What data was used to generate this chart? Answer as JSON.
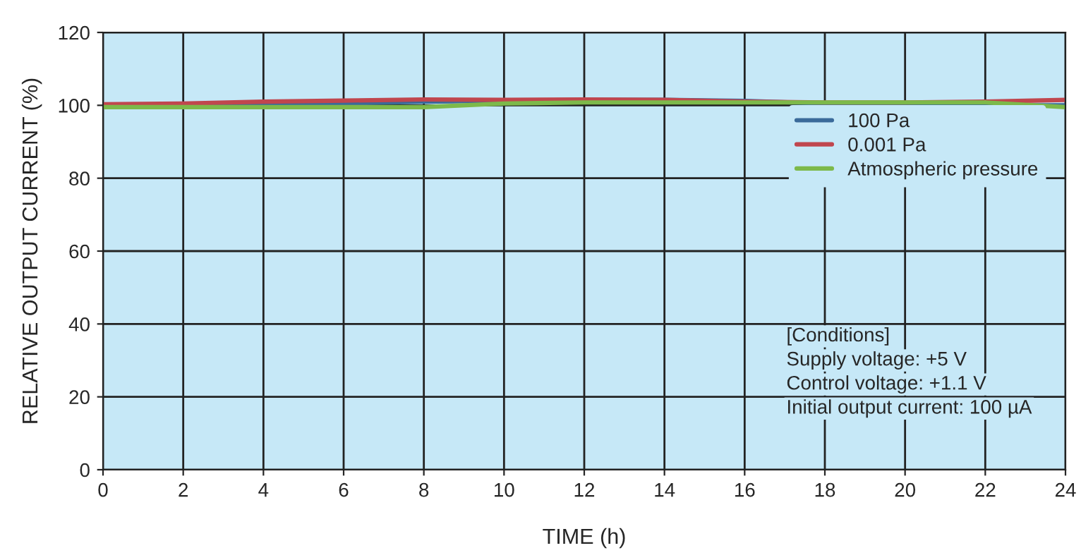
{
  "chart_data": {
    "type": "line",
    "xlabel": "TIME (h)",
    "ylabel": "RELATIVE OUTPUT CURRENT (%)",
    "x": [
      0,
      2,
      4,
      6,
      8,
      10,
      12,
      14,
      16,
      18,
      20,
      22,
      24
    ],
    "series": [
      {
        "name": "100 Pa",
        "color": "#3a6a9a",
        "values": [
          100,
          100,
          100.3,
          100.5,
          101,
          101.3,
          101.5,
          101.5,
          101.2,
          100.5,
          100,
          100,
          100
        ]
      },
      {
        "name": "0.001 Pa",
        "color": "#c0464e",
        "values": [
          100.3,
          100.5,
          101,
          101.3,
          101.6,
          101.5,
          101.6,
          101.5,
          101,
          100.8,
          100.8,
          101,
          101.5
        ]
      },
      {
        "name": "Atmospheric pressure",
        "color": "#7db94a",
        "values": [
          99.5,
          99.5,
          99.5,
          99.5,
          99.5,
          100.5,
          100.8,
          100.8,
          100.8,
          100.8,
          100.8,
          100.8,
          99.5
        ]
      }
    ],
    "xlim": [
      0,
      24
    ],
    "xticks": [
      0,
      2,
      4,
      6,
      8,
      10,
      12,
      14,
      16,
      18,
      20,
      22,
      24
    ],
    "ylim": [
      0,
      120
    ],
    "yticks": [
      0,
      20,
      40,
      60,
      80,
      100,
      120
    ],
    "grid": true,
    "legend": "right",
    "marker": "none",
    "line_style": "solid",
    "annotations": [
      "[Conditions]",
      "Supply voltage: +5 V",
      "Control voltage: +1.1 V",
      "Initial output current: 100 µA"
    ]
  }
}
